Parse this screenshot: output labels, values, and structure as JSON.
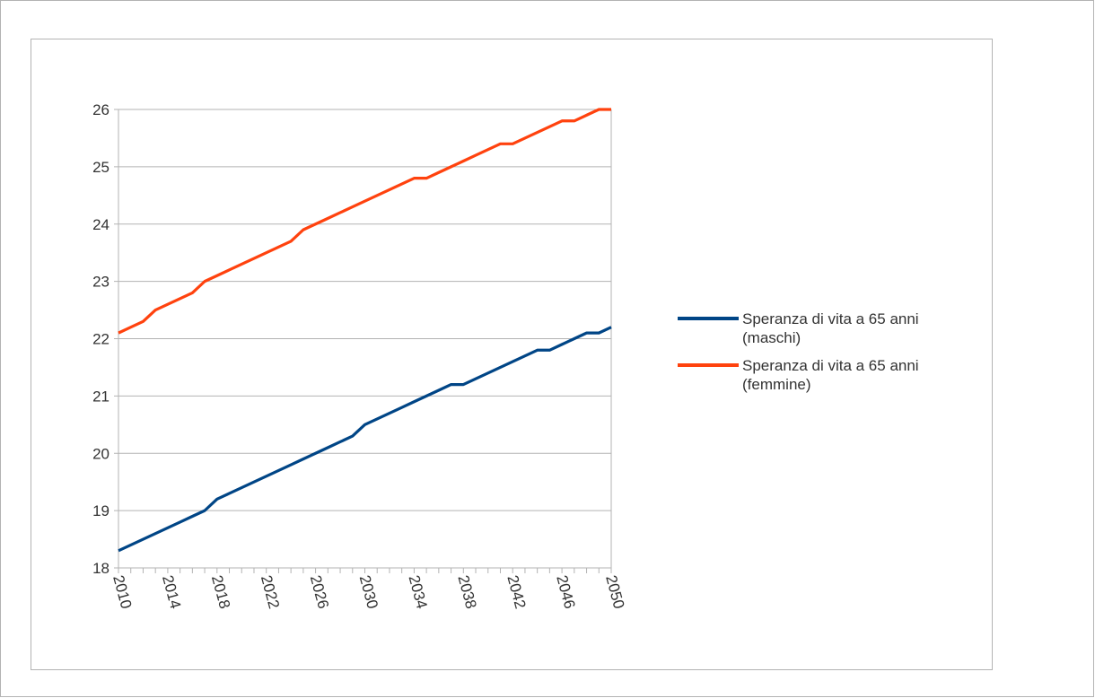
{
  "chart_data": {
    "type": "line",
    "title": "",
    "xlabel": "",
    "ylabel": "",
    "ylim": [
      18,
      26
    ],
    "xlim": [
      2010,
      2050
    ],
    "y_ticks": [
      "18",
      "19",
      "20",
      "21",
      "22",
      "23",
      "24",
      "25",
      "26"
    ],
    "x_ticks": [
      "2010",
      "2014",
      "2018",
      "2022",
      "2026",
      "2030",
      "2034",
      "2038",
      "2042",
      "2046",
      "2050"
    ],
    "grid": "horizontal",
    "legend_position": "right",
    "x": [
      2010,
      2011,
      2012,
      2013,
      2014,
      2015,
      2016,
      2017,
      2018,
      2019,
      2020,
      2021,
      2022,
      2023,
      2024,
      2025,
      2026,
      2027,
      2028,
      2029,
      2030,
      2031,
      2032,
      2033,
      2034,
      2035,
      2036,
      2037,
      2038,
      2039,
      2040,
      2041,
      2042,
      2043,
      2044,
      2045,
      2046,
      2047,
      2048,
      2049,
      2050
    ],
    "series": [
      {
        "name": "Speranza di vita a 65 anni (maschi)",
        "legend_lines": [
          "Speranza di vita a 65 anni",
          "(maschi)"
        ],
        "color": "#004586",
        "values": [
          18.3,
          18.4,
          18.5,
          18.6,
          18.7,
          18.8,
          18.9,
          19.0,
          19.2,
          19.3,
          19.4,
          19.5,
          19.6,
          19.7,
          19.8,
          19.9,
          20.0,
          20.1,
          20.2,
          20.3,
          20.5,
          20.6,
          20.7,
          20.8,
          20.9,
          21.0,
          21.1,
          21.2,
          21.2,
          21.3,
          21.4,
          21.5,
          21.6,
          21.7,
          21.8,
          21.8,
          21.9,
          22.0,
          22.1,
          22.1,
          22.2
        ]
      },
      {
        "name": "Speranza di vita a 65 anni (femmine)",
        "legend_lines": [
          "Speranza di vita a 65 anni",
          "(femmine)"
        ],
        "color": "#ff420e",
        "values": [
          22.1,
          22.2,
          22.3,
          22.5,
          22.6,
          22.7,
          22.8,
          23.0,
          23.1,
          23.2,
          23.3,
          23.4,
          23.5,
          23.6,
          23.7,
          23.9,
          24.0,
          24.1,
          24.2,
          24.3,
          24.4,
          24.5,
          24.6,
          24.7,
          24.8,
          24.8,
          24.9,
          25.0,
          25.1,
          25.2,
          25.3,
          25.4,
          25.4,
          25.5,
          25.6,
          25.7,
          25.8,
          25.8,
          25.9,
          26.0,
          26.0
        ]
      }
    ]
  }
}
